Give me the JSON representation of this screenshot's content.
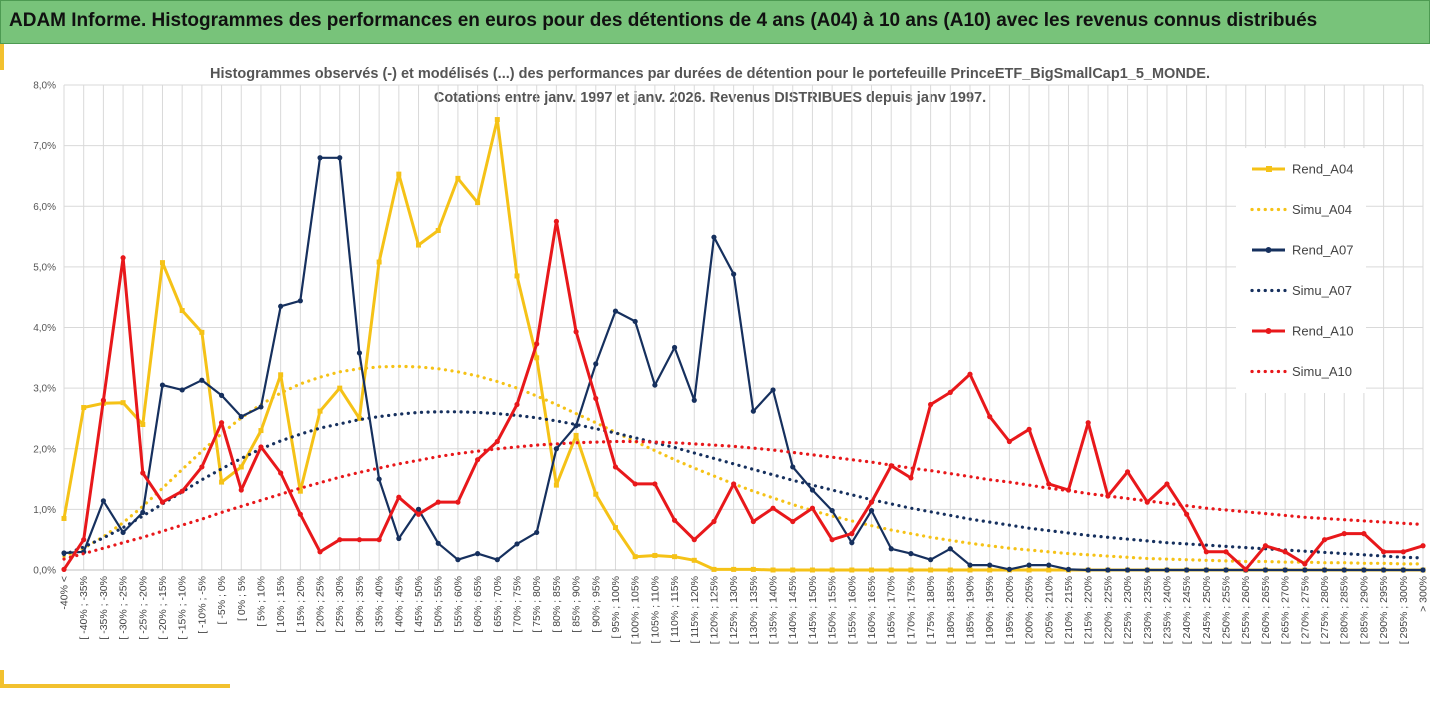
{
  "banner": {
    "title": "ADAM Informe. Histogrammes des performances en euros pour des détentions de 4 ans (A04) à 10 ans (A10) avec les revenus connus distribués"
  },
  "colors": {
    "banner": "#78c37a",
    "A04": "#f5c217",
    "A07": "#16305e",
    "A10": "#e8181b",
    "accent": "#f2c12e"
  },
  "chart_data": {
    "type": "line",
    "title": "Histogrammes observés (-) et modélisés (...) des performances par durées de détention pour le portefeuille PrinceETF_BigSmallCap1_5_MONDE.",
    "subtitle": "Cotations entre janv. 1997 et janv. 2026. Revenus DISTRIBUES depuis janv 1997.",
    "ylim": [
      0,
      8
    ],
    "yticks": [
      "0,0%",
      "1,0%",
      "2,0%",
      "3,0%",
      "4,0%",
      "5,0%",
      "6,0%",
      "7,0%",
      "8,0%"
    ],
    "grid": true,
    "legend_position": "right",
    "categories": [
      "-40% <",
      "[ -40% ; -35%",
      "[ -35% ; -30%",
      "[ -30% ; -25%",
      "[ -25% ; -20%",
      "[ -20% ; -15%",
      "[ -15% ; -10%",
      "[ -10% ; -5%",
      "[ -5% ; 0%",
      "[ 0% ; 5%",
      "[ 5% ; 10%",
      "[ 10% ; 15%",
      "[ 15% ; 20%",
      "[ 20% ; 25%",
      "[ 25% ; 30%",
      "[ 30% ; 35%",
      "[ 35% ; 40%",
      "[ 40% ; 45%",
      "[ 45% ; 50%",
      "[ 50% ; 55%",
      "[ 55% ; 60%",
      "[ 60% ; 65%",
      "[ 65% ; 70%",
      "[ 70% ; 75%",
      "[ 75% ; 80%",
      "[ 80% ; 85%",
      "[ 85% ; 90%",
      "[ 90% ; 95%",
      "[ 95% ; 100%",
      "[ 100% ; 105%",
      "[ 105% ; 110%",
      "[ 110% ; 115%",
      "[ 115% ; 120%",
      "[ 120% ; 125%",
      "[ 125% ; 130%",
      "[ 130% ; 135%",
      "[ 135% ; 140%",
      "[ 140% ; 145%",
      "[ 145% ; 150%",
      "[ 150% ; 155%",
      "[ 155% ; 160%",
      "[ 160% ; 165%",
      "[ 165% ; 170%",
      "[ 170% ; 175%",
      "[ 175% ; 180%",
      "[ 180% ; 185%",
      "[ 185% ; 190%",
      "[ 190% ; 195%",
      "[ 195% ; 200%",
      "[ 200% ; 205%",
      "[ 205% ; 210%",
      "[ 210% ; 215%",
      "[ 215% ; 220%",
      "[ 220% ; 225%",
      "[ 225% ; 230%",
      "[ 230% ; 235%",
      "[ 235% ; 240%",
      "[ 240% ; 245%",
      "[ 245% ; 250%",
      "[ 250% ; 255%",
      "[ 255% ; 260%",
      "[ 260% ; 265%",
      "[ 265% ; 270%",
      "[ 270% ; 275%",
      "[ 275% ; 280%",
      "[ 280% ; 285%",
      "[ 285% ; 290%",
      "[ 290% ; 295%",
      "[ 295% ; 300%",
      "> 300%"
    ],
    "series": [
      {
        "name": "Rend_A04",
        "style": "solid",
        "color": "#f5c217",
        "values": [
          0.85,
          2.68,
          2.75,
          2.76,
          2.4,
          5.07,
          4.28,
          3.92,
          1.45,
          1.7,
          2.3,
          3.22,
          1.3,
          2.62,
          3.0,
          2.5,
          5.08,
          6.53,
          5.36,
          5.6,
          6.46,
          6.06,
          7.43,
          4.85,
          3.5,
          1.4,
          2.22,
          1.25,
          0.7,
          0.22,
          0.24,
          0.22,
          0.16,
          0.01,
          0.01,
          0.01,
          0,
          0,
          0,
          0,
          0,
          0,
          0,
          0,
          0,
          0,
          0,
          0,
          0,
          0,
          0,
          0,
          0,
          0,
          0,
          0,
          0,
          0,
          0,
          0,
          0,
          0,
          0,
          0,
          0,
          0,
          0,
          0,
          0,
          0
        ]
      },
      {
        "name": "Simu_A04",
        "style": "dotted",
        "color": "#f5c217",
        "values": [
          0.22,
          0.36,
          0.55,
          0.78,
          1.05,
          1.35,
          1.66,
          1.96,
          2.25,
          2.51,
          2.73,
          2.92,
          3.07,
          3.18,
          3.27,
          3.32,
          3.35,
          3.36,
          3.35,
          3.32,
          3.27,
          3.2,
          3.11,
          3.0,
          2.87,
          2.73,
          2.58,
          2.43,
          2.27,
          2.12,
          1.97,
          1.82,
          1.68,
          1.55,
          1.42,
          1.3,
          1.19,
          1.08,
          0.98,
          0.89,
          0.81,
          0.73,
          0.66,
          0.6,
          0.54,
          0.49,
          0.44,
          0.4,
          0.36,
          0.33,
          0.3,
          0.27,
          0.25,
          0.23,
          0.21,
          0.19,
          0.18,
          0.17,
          0.16,
          0.15,
          0.14,
          0.14,
          0.13,
          0.13,
          0.12,
          0.12,
          0.11,
          0.11,
          0.1,
          0.1
        ]
      },
      {
        "name": "Rend_A07",
        "style": "solid",
        "color": "#16305e",
        "values": [
          0.28,
          0.3,
          1.14,
          0.62,
          0.95,
          3.05,
          2.97,
          3.13,
          2.88,
          2.53,
          2.69,
          4.35,
          4.44,
          6.8,
          6.8,
          3.58,
          1.5,
          0.52,
          1.0,
          0.44,
          0.17,
          0.27,
          0.17,
          0.43,
          0.62,
          2.0,
          2.38,
          3.4,
          4.27,
          4.1,
          3.05,
          3.67,
          2.8,
          5.49,
          4.88,
          2.62,
          2.97,
          1.7,
          1.32,
          0.98,
          0.45,
          0.98,
          0.35,
          0.27,
          0.17,
          0.35,
          0.08,
          0.08,
          0.01,
          0.08,
          0.08,
          0.01,
          0,
          0,
          0,
          0,
          0,
          0,
          0,
          0,
          0,
          0,
          0,
          0,
          0,
          0,
          0,
          0,
          0,
          0
        ]
      },
      {
        "name": "Simu_A07",
        "style": "dotted",
        "color": "#16305e",
        "values": [
          0.25,
          0.38,
          0.53,
          0.7,
          0.89,
          1.09,
          1.29,
          1.49,
          1.67,
          1.84,
          2.0,
          2.13,
          2.24,
          2.34,
          2.41,
          2.48,
          2.53,
          2.57,
          2.6,
          2.61,
          2.61,
          2.6,
          2.58,
          2.55,
          2.51,
          2.46,
          2.4,
          2.33,
          2.26,
          2.18,
          2.1,
          2.02,
          1.93,
          1.84,
          1.75,
          1.66,
          1.57,
          1.48,
          1.4,
          1.32,
          1.24,
          1.16,
          1.09,
          1.02,
          0.96,
          0.9,
          0.84,
          0.79,
          0.74,
          0.69,
          0.65,
          0.61,
          0.57,
          0.54,
          0.51,
          0.48,
          0.45,
          0.43,
          0.41,
          0.39,
          0.37,
          0.35,
          0.33,
          0.31,
          0.29,
          0.27,
          0.25,
          0.23,
          0.21,
          0.2
        ]
      },
      {
        "name": "Rend_A10",
        "style": "solid",
        "color": "#e8181b",
        "values": [
          0.01,
          0.5,
          2.8,
          5.15,
          1.6,
          1.12,
          1.3,
          1.7,
          2.43,
          1.32,
          2.03,
          1.6,
          0.92,
          0.3,
          0.5,
          0.5,
          0.5,
          1.2,
          0.92,
          1.12,
          1.12,
          1.82,
          2.12,
          2.73,
          3.73,
          5.75,
          3.93,
          2.83,
          1.7,
          1.42,
          1.42,
          0.82,
          0.5,
          0.8,
          1.42,
          0.8,
          1.02,
          0.8,
          1.02,
          0.5,
          0.6,
          1.12,
          1.72,
          1.52,
          2.73,
          2.93,
          3.23,
          2.53,
          2.12,
          2.32,
          1.42,
          1.32,
          2.43,
          1.22,
          1.62,
          1.12,
          1.42,
          0.92,
          0.3,
          0.3,
          0.01,
          0.4,
          0.3,
          0.1,
          0.5,
          0.6,
          0.6,
          0.3,
          0.3,
          0.4
        ]
      },
      {
        "name": "Simu_A10",
        "style": "dotted",
        "color": "#e8181b",
        "values": [
          0.18,
          0.27,
          0.36,
          0.45,
          0.54,
          0.64,
          0.74,
          0.84,
          0.95,
          1.05,
          1.15,
          1.25,
          1.35,
          1.44,
          1.53,
          1.61,
          1.68,
          1.75,
          1.81,
          1.87,
          1.92,
          1.96,
          2.0,
          2.03,
          2.06,
          2.08,
          2.1,
          2.11,
          2.12,
          2.12,
          2.11,
          2.1,
          2.08,
          2.06,
          2.04,
          2.01,
          1.98,
          1.94,
          1.9,
          1.86,
          1.82,
          1.78,
          1.73,
          1.68,
          1.64,
          1.59,
          1.54,
          1.49,
          1.45,
          1.4,
          1.35,
          1.31,
          1.26,
          1.22,
          1.18,
          1.14,
          1.1,
          1.06,
          1.02,
          0.99,
          0.96,
          0.93,
          0.9,
          0.87,
          0.85,
          0.83,
          0.81,
          0.79,
          0.77,
          0.75
        ]
      }
    ]
  }
}
